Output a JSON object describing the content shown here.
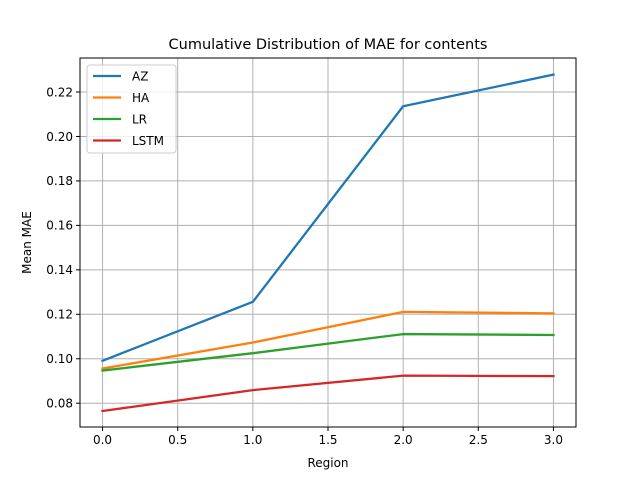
{
  "chart_data": {
    "type": "line",
    "title": "Cumulative Distribution of MAE for contents",
    "xlabel": "Region",
    "ylabel": "Mean MAE",
    "x": [
      0,
      1,
      2,
      3
    ],
    "xlim": [
      -0.15,
      3.15
    ],
    "ylim": [
      0.0693,
      0.2353
    ],
    "x_ticks": [
      "0.0",
      "0.5",
      "1.0",
      "1.5",
      "2.0",
      "2.5",
      "3.0"
    ],
    "y_ticks": [
      "0.08",
      "0.10",
      "0.12",
      "0.14",
      "0.16",
      "0.18",
      "0.20",
      "0.22"
    ],
    "grid": true,
    "legend_position": "top-left",
    "series": [
      {
        "name": "AZ",
        "color": "#1f77b4",
        "values": [
          0.0991,
          0.1256,
          0.2136,
          0.2278
        ]
      },
      {
        "name": "HA",
        "color": "#ff7f0e",
        "values": [
          0.0956,
          0.1073,
          0.1211,
          0.1204
        ]
      },
      {
        "name": "LR",
        "color": "#2ca02c",
        "values": [
          0.0947,
          0.1025,
          0.1111,
          0.1107
        ]
      },
      {
        "name": "LSTM",
        "color": "#d62728",
        "values": [
          0.0765,
          0.0859,
          0.0924,
          0.0922
        ]
      }
    ]
  }
}
